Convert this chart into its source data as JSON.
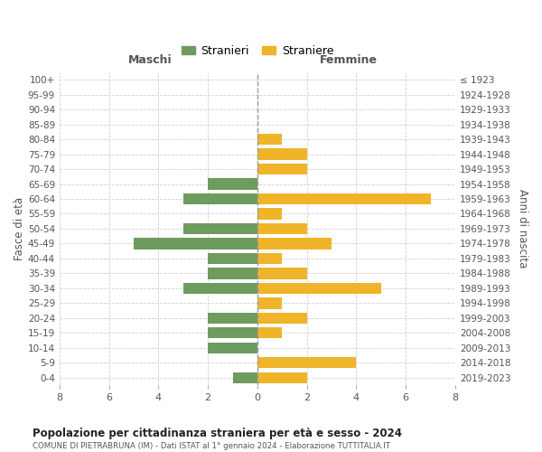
{
  "age_groups": [
    "0-4",
    "5-9",
    "10-14",
    "15-19",
    "20-24",
    "25-29",
    "30-34",
    "35-39",
    "40-44",
    "45-49",
    "50-54",
    "55-59",
    "60-64",
    "65-69",
    "70-74",
    "75-79",
    "80-84",
    "85-89",
    "90-94",
    "95-99",
    "100+"
  ],
  "birth_years": [
    "2019-2023",
    "2014-2018",
    "2009-2013",
    "2004-2008",
    "1999-2003",
    "1994-1998",
    "1989-1993",
    "1984-1988",
    "1979-1983",
    "1974-1978",
    "1969-1973",
    "1964-1968",
    "1959-1963",
    "1954-1958",
    "1949-1953",
    "1944-1948",
    "1939-1943",
    "1934-1938",
    "1929-1933",
    "1924-1928",
    "≤ 1923"
  ],
  "males": [
    1,
    0,
    2,
    2,
    2,
    0,
    3,
    2,
    2,
    5,
    3,
    0,
    3,
    2,
    0,
    0,
    0,
    0,
    0,
    0,
    0
  ],
  "females": [
    2,
    4,
    0,
    1,
    2,
    1,
    5,
    2,
    1,
    3,
    2,
    1,
    7,
    0,
    2,
    2,
    1,
    0,
    0,
    0,
    0
  ],
  "male_color": "#6e9b5e",
  "female_color": "#f0b429",
  "background_color": "#ffffff",
  "grid_color": "#d0d0d0",
  "title": "Popolazione per cittadinanza straniera per età e sesso - 2024",
  "subtitle": "COMUNE DI PIETRABRUNA (IM) - Dati ISTAT al 1° gennaio 2024 - Elaborazione TUTTITALIA.IT",
  "xlabel_left": "Maschi",
  "xlabel_right": "Femmine",
  "ylabel_left": "Fasce di età",
  "ylabel_right": "Anni di nascita",
  "legend_male": "Stranieri",
  "legend_female": "Straniere",
  "xlim": 8,
  "bar_height": 0.75
}
